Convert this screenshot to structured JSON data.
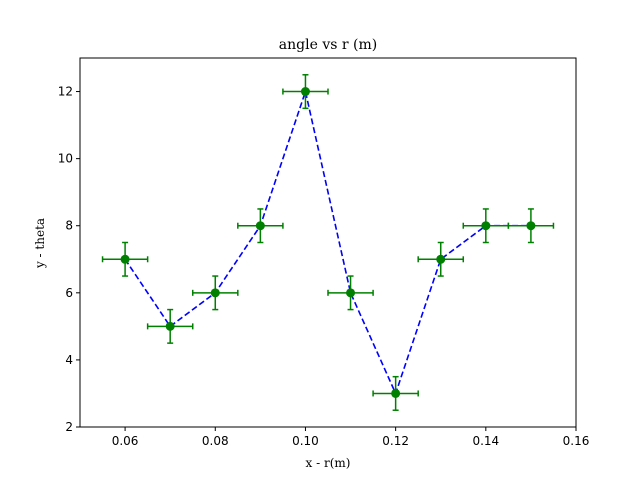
{
  "chart_data": {
    "type": "line",
    "title": "angle vs r (m)",
    "xlabel": "x - r(m)",
    "ylabel": "y - theta",
    "xlim": [
      0.05,
      0.16
    ],
    "ylim": [
      2,
      13
    ],
    "xticks": [
      "0.06",
      "0.08",
      "0.10",
      "0.12",
      "0.14",
      "0.16"
    ],
    "yticks": [
      "2",
      "4",
      "6",
      "8",
      "10",
      "12"
    ],
    "grid": false,
    "legend": "none",
    "series": [
      {
        "x": [
          0.06,
          0.07,
          0.08,
          0.09,
          0.1,
          0.11,
          0.12,
          0.13,
          0.14,
          0.15
        ],
        "y": [
          7,
          5,
          6,
          8,
          12,
          6,
          3,
          7,
          8,
          8
        ],
        "xerr": 0.005,
        "yerr": 0.5,
        "line_color": "#0000ff",
        "line_style": "dashed",
        "marker_color": "#008000",
        "errorbar_color": "#008000"
      }
    ]
  }
}
